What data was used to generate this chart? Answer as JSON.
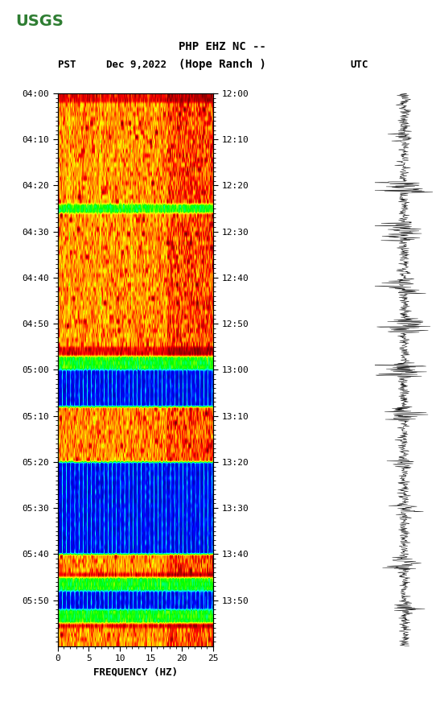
{
  "title_line1": "PHP EHZ NC --",
  "title_line2": "(Hope Ranch )",
  "date_label": "Dec 9,2022",
  "pst_label": "PST",
  "utc_label": "UTC",
  "freq_min": 0,
  "freq_max": 25,
  "freq_ticks": [
    0,
    5,
    10,
    15,
    20,
    25
  ],
  "xlabel": "FREQUENCY (HZ)",
  "left_times": [
    "04:00",
    "04:10",
    "04:20",
    "04:30",
    "04:40",
    "04:50",
    "05:00",
    "05:10",
    "05:20",
    "05:30",
    "05:40",
    "05:50"
  ],
  "right_times": [
    "12:00",
    "12:10",
    "12:20",
    "12:30",
    "12:40",
    "12:50",
    "13:00",
    "13:10",
    "13:20",
    "13:30",
    "13:40",
    "13:50"
  ],
  "n_time_rows": 120,
  "n_freq_cols": 300,
  "usgs_green": "#2e7d32",
  "bg_color": "#ffffff",
  "spectrogram_seed": 42,
  "blue_band_rows": [
    [
      60,
      68
    ],
    [
      80,
      100
    ],
    [
      108,
      112
    ]
  ],
  "cyan_band_rows": [
    [
      24,
      26
    ],
    [
      57,
      60
    ],
    [
      105,
      108
    ],
    [
      112,
      115
    ]
  ],
  "high_energy_rows": [
    [
      0,
      2
    ],
    [
      55,
      62
    ],
    [
      104,
      116
    ]
  ],
  "waveform_seed": 123
}
